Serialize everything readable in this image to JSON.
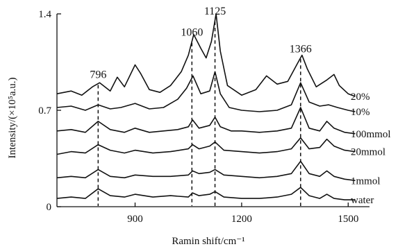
{
  "chart_data": {
    "type": "line",
    "xlabel": "Ramin shift/cm⁻¹",
    "ylabel": "Intensity/(×10⁵a.u.)",
    "xlim": [
      680,
      1560
    ],
    "ylim": [
      0,
      1.4
    ],
    "xticks": [
      900,
      1200,
      1500
    ],
    "xtick_labels": [
      "900",
      "1200",
      "1500"
    ],
    "yticks": [
      0,
      0.7,
      1.4
    ],
    "ytick_labels": [
      "0",
      "0.7",
      "1.4"
    ],
    "grid": false,
    "legend": "none",
    "peaks": [
      {
        "label": "796",
        "x": 796
      },
      {
        "label": "1060",
        "x": 1060
      },
      {
        "label": "1125",
        "x": 1125
      },
      {
        "label": "1366",
        "x": 1366
      }
    ],
    "series": [
      {
        "name": "20%",
        "x": [
          680,
          720,
          750,
          780,
          800,
          830,
          850,
          870,
          900,
          915,
          940,
          970,
          1000,
          1030,
          1050,
          1065,
          1085,
          1100,
          1115,
          1128,
          1140,
          1160,
          1200,
          1240,
          1270,
          1300,
          1330,
          1355,
          1370,
          1385,
          1410,
          1440,
          1460,
          1475,
          1500,
          1520
        ],
        "y": [
          0.82,
          0.84,
          0.81,
          0.87,
          0.9,
          0.84,
          0.94,
          0.87,
          1.03,
          0.97,
          0.85,
          0.83,
          0.88,
          0.98,
          1.1,
          1.25,
          1.15,
          1.08,
          1.2,
          1.4,
          1.13,
          0.88,
          0.81,
          0.85,
          0.95,
          0.89,
          0.91,
          1.03,
          1.1,
          1.0,
          0.87,
          0.92,
          0.96,
          0.88,
          0.82,
          0.8
        ]
      },
      {
        "name": "10%",
        "x": [
          680,
          720,
          760,
          796,
          830,
          860,
          900,
          940,
          980,
          1020,
          1045,
          1063,
          1085,
          1110,
          1125,
          1140,
          1165,
          1200,
          1250,
          1300,
          1340,
          1366,
          1390,
          1420,
          1445,
          1470,
          1500,
          1520
        ],
        "y": [
          0.72,
          0.73,
          0.7,
          0.74,
          0.71,
          0.72,
          0.75,
          0.71,
          0.72,
          0.78,
          0.86,
          0.95,
          0.82,
          0.84,
          0.98,
          0.82,
          0.72,
          0.7,
          0.69,
          0.7,
          0.74,
          0.9,
          0.76,
          0.73,
          0.74,
          0.72,
          0.7,
          0.69
        ]
      },
      {
        "name": "100mmol",
        "x": [
          680,
          720,
          760,
          796,
          830,
          870,
          900,
          940,
          980,
          1020,
          1050,
          1062,
          1080,
          1110,
          1125,
          1140,
          1170,
          1200,
          1250,
          1300,
          1340,
          1366,
          1390,
          1420,
          1440,
          1460,
          1490,
          1520
        ],
        "y": [
          0.55,
          0.56,
          0.54,
          0.62,
          0.56,
          0.54,
          0.57,
          0.54,
          0.55,
          0.56,
          0.58,
          0.63,
          0.57,
          0.59,
          0.65,
          0.58,
          0.55,
          0.55,
          0.54,
          0.55,
          0.57,
          0.72,
          0.57,
          0.55,
          0.62,
          0.57,
          0.54,
          0.53
        ]
      },
      {
        "name": "20mmol",
        "x": [
          680,
          720,
          760,
          796,
          830,
          870,
          900,
          950,
          1000,
          1050,
          1062,
          1080,
          1110,
          1125,
          1150,
          1200,
          1250,
          1300,
          1340,
          1366,
          1390,
          1420,
          1440,
          1460,
          1490,
          1520
        ],
        "y": [
          0.38,
          0.4,
          0.39,
          0.45,
          0.41,
          0.39,
          0.41,
          0.39,
          0.4,
          0.42,
          0.45,
          0.42,
          0.44,
          0.47,
          0.41,
          0.4,
          0.39,
          0.4,
          0.42,
          0.5,
          0.42,
          0.43,
          0.49,
          0.44,
          0.41,
          0.4
        ]
      },
      {
        "name": "1mmol",
        "x": [
          680,
          720,
          760,
          796,
          830,
          870,
          900,
          950,
          1000,
          1050,
          1062,
          1080,
          1110,
          1125,
          1150,
          1200,
          1250,
          1300,
          1340,
          1366,
          1390,
          1420,
          1440,
          1460,
          1490,
          1520
        ],
        "y": [
          0.21,
          0.22,
          0.21,
          0.27,
          0.22,
          0.21,
          0.23,
          0.22,
          0.22,
          0.23,
          0.26,
          0.24,
          0.25,
          0.27,
          0.23,
          0.22,
          0.21,
          0.22,
          0.24,
          0.33,
          0.24,
          0.22,
          0.26,
          0.22,
          0.2,
          0.19
        ]
      },
      {
        "name": "water",
        "x": [
          680,
          720,
          760,
          796,
          830,
          870,
          900,
          950,
          1000,
          1050,
          1062,
          1080,
          1110,
          1125,
          1150,
          1200,
          1250,
          1300,
          1340,
          1366,
          1390,
          1420,
          1440,
          1460,
          1490,
          1520
        ],
        "y": [
          0.06,
          0.07,
          0.06,
          0.13,
          0.08,
          0.07,
          0.09,
          0.07,
          0.08,
          0.07,
          0.1,
          0.08,
          0.09,
          0.11,
          0.07,
          0.06,
          0.06,
          0.07,
          0.09,
          0.14,
          0.08,
          0.06,
          0.09,
          0.06,
          0.05,
          0.05
        ]
      }
    ]
  }
}
